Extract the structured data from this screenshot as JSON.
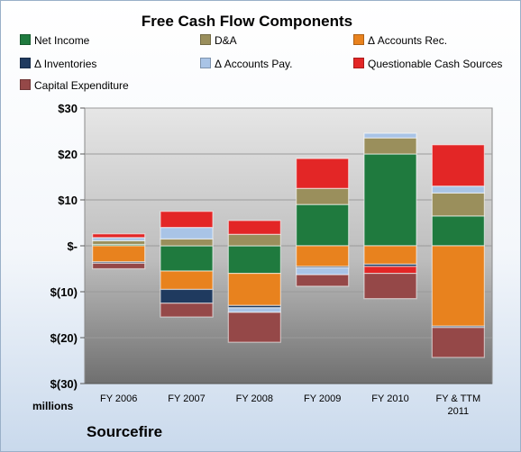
{
  "chart_data": {
    "type": "bar",
    "stacked": true,
    "title": "Free Cash Flow Components",
    "categories": [
      [
        "FY 2006"
      ],
      [
        "FY 2007"
      ],
      [
        "FY 2008"
      ],
      [
        "FY 2009"
      ],
      [
        "FY 2010"
      ],
      [
        "FY & TTM",
        "2011"
      ]
    ],
    "ylabel": "millions",
    "ylim": [
      -30,
      30
    ],
    "yticks": [
      -30,
      -20,
      -10,
      0,
      10,
      20,
      30
    ],
    "ytick_labels": [
      "$(30)",
      "$(20)",
      "$(10)",
      "$-",
      "$10",
      "$20",
      "$30"
    ],
    "grid": true,
    "legend_position": "top",
    "series": [
      {
        "name": "Net Income",
        "color": "#1f7a3e",
        "values": [
          0.3,
          -5.5,
          -6.0,
          9.0,
          20.0,
          6.5
        ]
      },
      {
        "name": "D&A",
        "color": "#9a8f5c",
        "values": [
          0.8,
          1.5,
          2.5,
          3.5,
          3.5,
          5.0
        ]
      },
      {
        "name": "Δ Accounts Rec.",
        "color": "#e8821e",
        "values": [
          -3.5,
          -4.0,
          -7.0,
          -4.5,
          -4.0,
          -17.5
        ]
      },
      {
        "name": "Δ Inventories",
        "color": "#1f3a5f",
        "values": [
          -0.3,
          -3.0,
          -0.5,
          -0.3,
          -0.5,
          -0.3
        ]
      },
      {
        "name": "Δ Accounts Pay.",
        "color": "#a9c4e6",
        "values": [
          0.7,
          2.5,
          -1.0,
          -1.5,
          1.0,
          1.5
        ]
      },
      {
        "name": "Questionable Cash Sources",
        "color": "#e32626",
        "values": [
          0.8,
          3.5,
          3.0,
          6.5,
          -1.5,
          9.0
        ]
      },
      {
        "name": "Capital Expenditure",
        "color": "#954848",
        "values": [
          -1.2,
          -3.0,
          -6.5,
          -2.5,
          -5.5,
          -6.5
        ]
      }
    ]
  },
  "footer": {
    "company": "Sourcefire"
  }
}
